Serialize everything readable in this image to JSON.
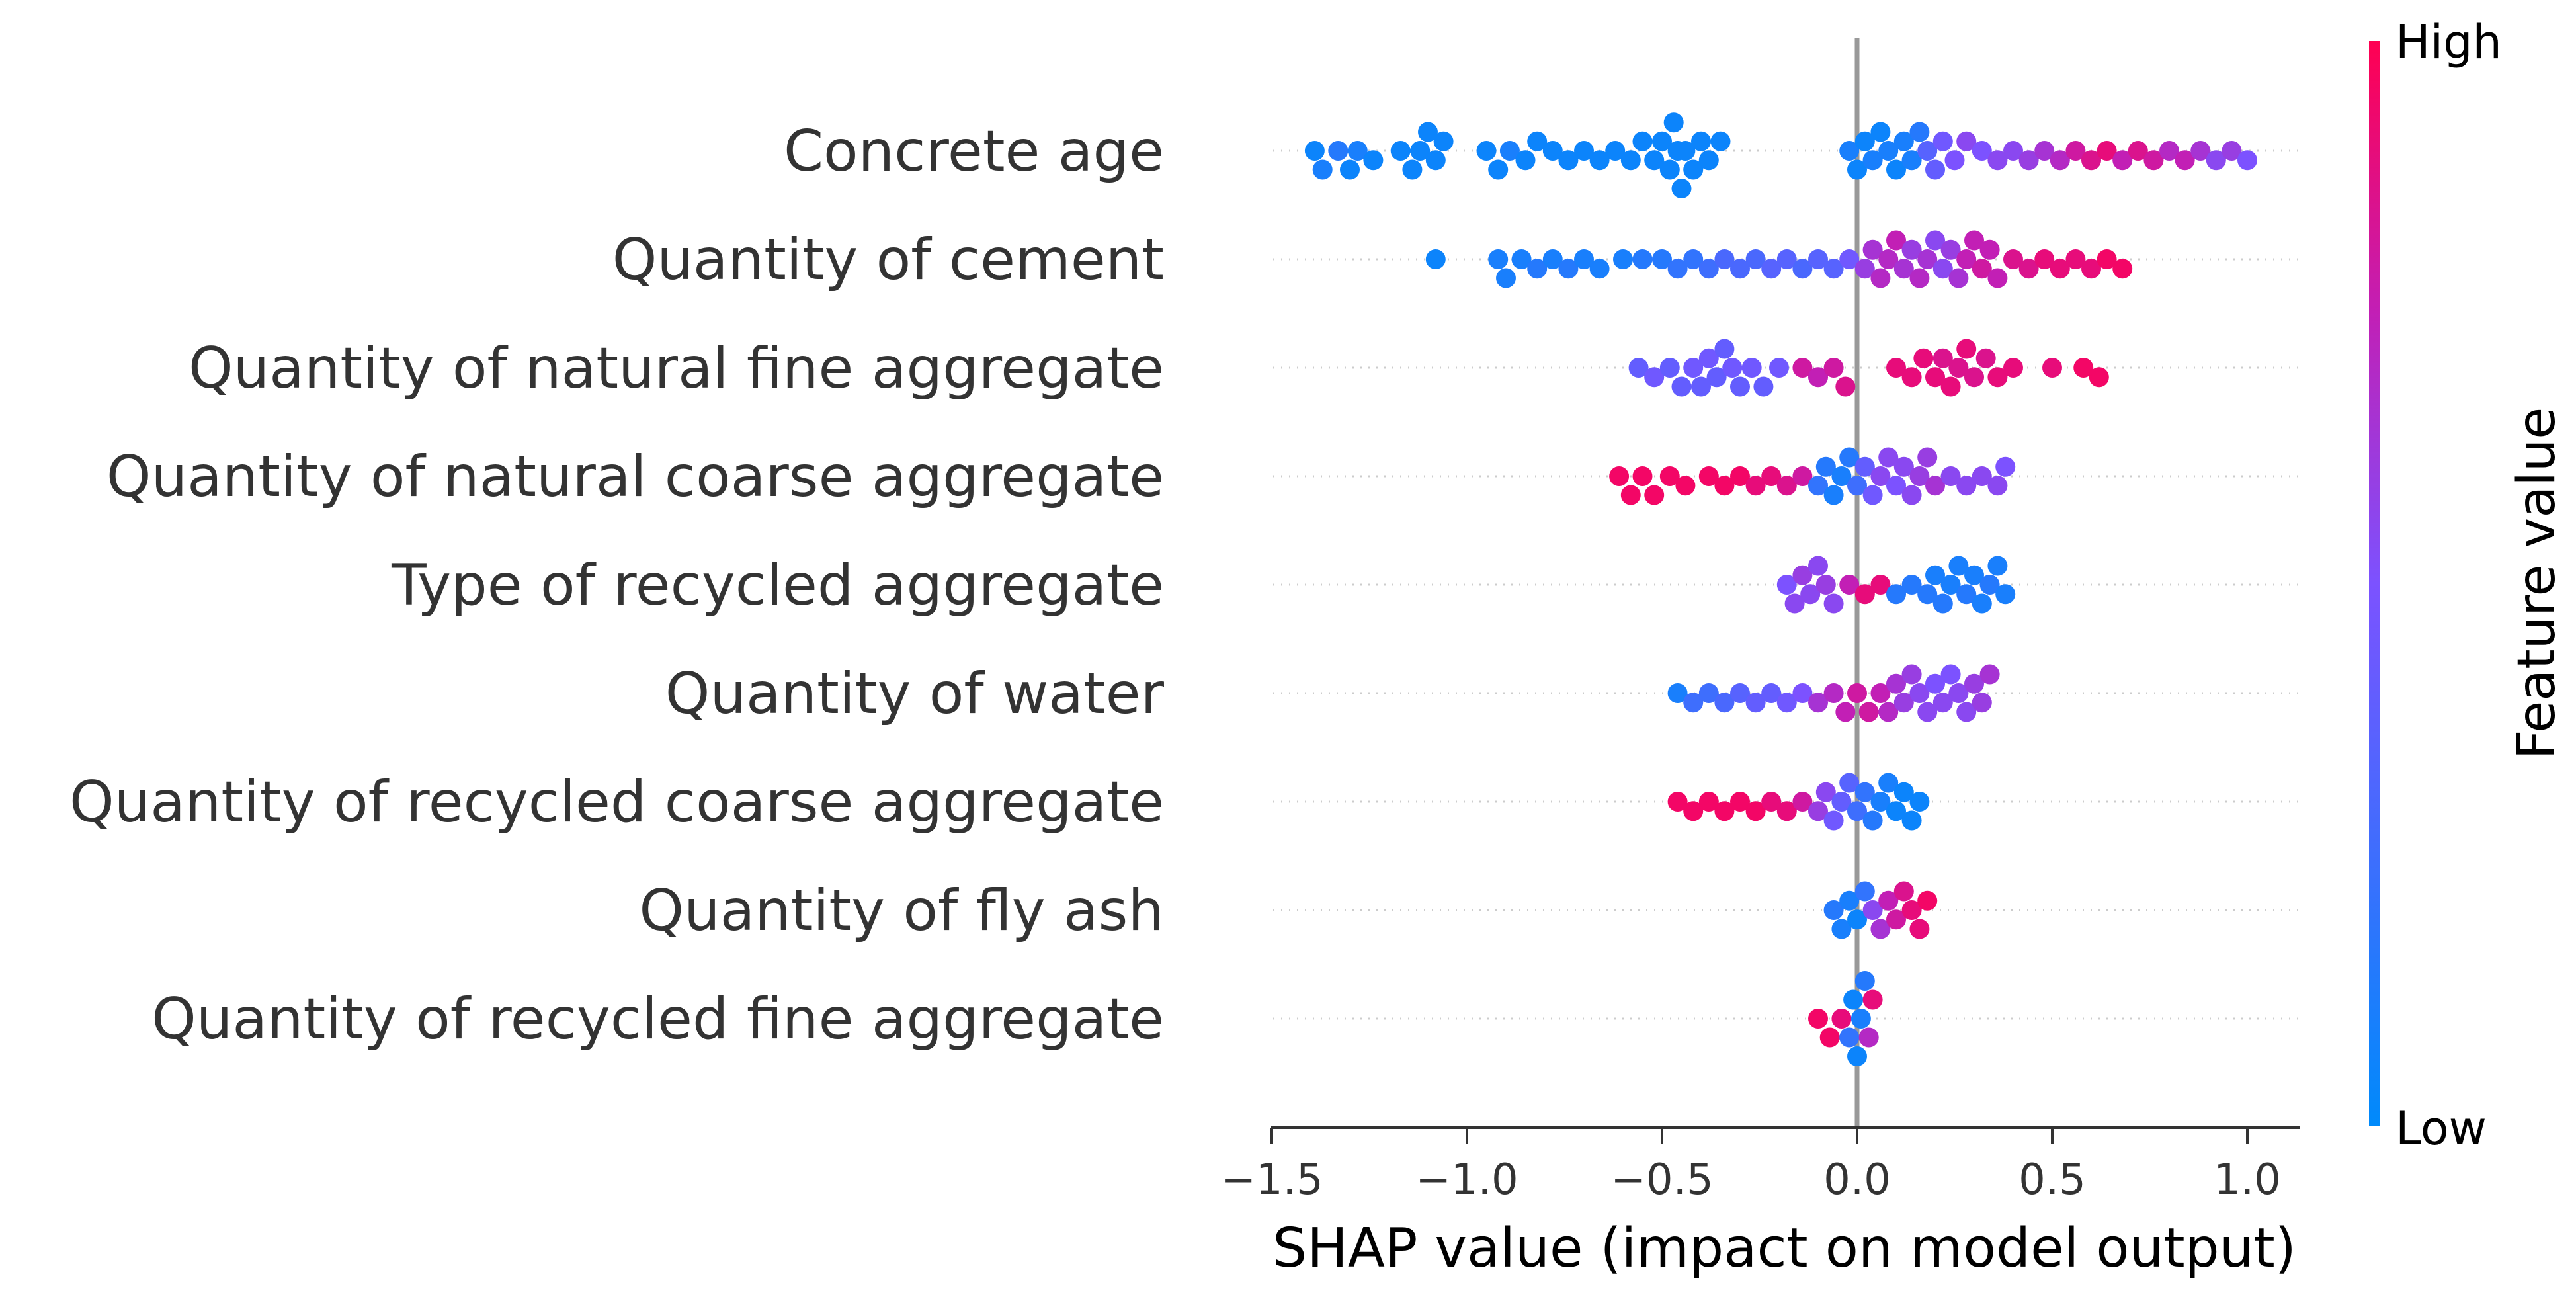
{
  "chart_data": {
    "type": "scatter",
    "subtype": "shap-beeswarm",
    "title": "",
    "xlabel": "SHAP value (impact on model output)",
    "xlim": [
      -1.5,
      1.12
    ],
    "xticks": [
      -1.5,
      -1.0,
      -0.5,
      0.0,
      0.5,
      1.0
    ],
    "xtick_labels": [
      "−1.5",
      "−1.0",
      "−0.5",
      "0.0",
      "0.5",
      "1.0"
    ],
    "colorbar": {
      "title": "Feature value",
      "high_label": "High",
      "low_label": "Low",
      "low_color": "#008afb",
      "high_color": "#ff0052"
    },
    "features": [
      {
        "name": "Concrete age",
        "points": [
          [
            -1.39,
            0.05
          ],
          [
            -1.37,
            0.1
          ],
          [
            -1.33,
            0.15
          ],
          [
            -1.3,
            0.05
          ],
          [
            -1.28,
            0.1
          ],
          [
            -1.24,
            0.05
          ],
          [
            -1.17,
            0.05
          ],
          [
            -1.14,
            0.05
          ],
          [
            -1.12,
            0.05
          ],
          [
            -1.1,
            0.05
          ],
          [
            -1.08,
            0.05
          ],
          [
            -1.06,
            0.05
          ],
          [
            -0.95,
            0.05
          ],
          [
            -0.92,
            0.05
          ],
          [
            -0.89,
            0.1
          ],
          [
            -0.85,
            0.05
          ],
          [
            -0.82,
            0.05
          ],
          [
            -0.78,
            0.05
          ],
          [
            -0.74,
            0.05
          ],
          [
            -0.7,
            0.05
          ],
          [
            -0.66,
            0.05
          ],
          [
            -0.62,
            0.05
          ],
          [
            -0.58,
            0.05
          ],
          [
            -0.55,
            0.05
          ],
          [
            -0.52,
            0.05
          ],
          [
            -0.5,
            0.05
          ],
          [
            -0.48,
            0.05
          ],
          [
            -0.47,
            0.05
          ],
          [
            -0.46,
            0.05
          ],
          [
            -0.45,
            0.05
          ],
          [
            -0.44,
            0.05
          ],
          [
            -0.42,
            0.05
          ],
          [
            -0.4,
            0.05
          ],
          [
            -0.38,
            0.05
          ],
          [
            -0.35,
            0.05
          ],
          [
            -0.02,
            0.1
          ],
          [
            0.0,
            0.05
          ],
          [
            0.02,
            0.05
          ],
          [
            0.04,
            0.1
          ],
          [
            0.06,
            0.05
          ],
          [
            0.08,
            0.1
          ],
          [
            0.1,
            0.05
          ],
          [
            0.12,
            0.1
          ],
          [
            0.14,
            0.1
          ],
          [
            0.16,
            0.15
          ],
          [
            0.18,
            0.35
          ],
          [
            0.2,
            0.4
          ],
          [
            0.22,
            0.45
          ],
          [
            0.25,
            0.5
          ],
          [
            0.28,
            0.55
          ],
          [
            0.32,
            0.5
          ],
          [
            0.36,
            0.55
          ],
          [
            0.4,
            0.55
          ],
          [
            0.44,
            0.6
          ],
          [
            0.48,
            0.65
          ],
          [
            0.52,
            0.7
          ],
          [
            0.56,
            0.8
          ],
          [
            0.6,
            0.85
          ],
          [
            0.64,
            0.9
          ],
          [
            0.68,
            0.75
          ],
          [
            0.72,
            0.85
          ],
          [
            0.76,
            0.8
          ],
          [
            0.8,
            0.7
          ],
          [
            0.84,
            0.75
          ],
          [
            0.88,
            0.65
          ],
          [
            0.92,
            0.55
          ],
          [
            0.96,
            0.6
          ],
          [
            1.0,
            0.5
          ]
        ]
      },
      {
        "name": "Quantity of cement",
        "points": [
          [
            -1.08,
            0.05
          ],
          [
            -0.92,
            0.1
          ],
          [
            -0.9,
            0.1
          ],
          [
            -0.86,
            0.1
          ],
          [
            -0.82,
            0.15
          ],
          [
            -0.78,
            0.1
          ],
          [
            -0.74,
            0.15
          ],
          [
            -0.7,
            0.1
          ],
          [
            -0.66,
            0.1
          ],
          [
            -0.6,
            0.1
          ],
          [
            -0.55,
            0.15
          ],
          [
            -0.5,
            0.15
          ],
          [
            -0.46,
            0.2
          ],
          [
            -0.42,
            0.2
          ],
          [
            -0.38,
            0.25
          ],
          [
            -0.34,
            0.3
          ],
          [
            -0.3,
            0.3
          ],
          [
            -0.26,
            0.3
          ],
          [
            -0.22,
            0.35
          ],
          [
            -0.18,
            0.35
          ],
          [
            -0.14,
            0.3
          ],
          [
            -0.1,
            0.35
          ],
          [
            -0.06,
            0.35
          ],
          [
            -0.02,
            0.45
          ],
          [
            0.02,
            0.6
          ],
          [
            0.04,
            0.65
          ],
          [
            0.06,
            0.7
          ],
          [
            0.08,
            0.7
          ],
          [
            0.1,
            0.75
          ],
          [
            0.12,
            0.65
          ],
          [
            0.14,
            0.6
          ],
          [
            0.16,
            0.7
          ],
          [
            0.18,
            0.65
          ],
          [
            0.2,
            0.55
          ],
          [
            0.22,
            0.55
          ],
          [
            0.24,
            0.6
          ],
          [
            0.26,
            0.65
          ],
          [
            0.28,
            0.75
          ],
          [
            0.3,
            0.75
          ],
          [
            0.32,
            0.8
          ],
          [
            0.34,
            0.75
          ],
          [
            0.36,
            0.75
          ],
          [
            0.4,
            0.85
          ],
          [
            0.44,
            0.85
          ],
          [
            0.48,
            0.9
          ],
          [
            0.52,
            0.9
          ],
          [
            0.56,
            0.9
          ],
          [
            0.6,
            0.9
          ],
          [
            0.64,
            0.95
          ],
          [
            0.68,
            0.95
          ]
        ]
      },
      {
        "name": "Quantity of natural fine aggregate",
        "points": [
          [
            -0.56,
            0.4
          ],
          [
            -0.52,
            0.45
          ],
          [
            -0.48,
            0.4
          ],
          [
            -0.45,
            0.4
          ],
          [
            -0.42,
            0.45
          ],
          [
            -0.4,
            0.4
          ],
          [
            -0.38,
            0.45
          ],
          [
            -0.36,
            0.4
          ],
          [
            -0.34,
            0.4
          ],
          [
            -0.32,
            0.45
          ],
          [
            -0.3,
            0.4
          ],
          [
            -0.27,
            0.45
          ],
          [
            -0.24,
            0.4
          ],
          [
            -0.2,
            0.45
          ],
          [
            -0.14,
            0.8
          ],
          [
            -0.1,
            0.75
          ],
          [
            -0.06,
            0.8
          ],
          [
            -0.03,
            0.85
          ],
          [
            0.1,
            0.9
          ],
          [
            0.14,
            0.9
          ],
          [
            0.17,
            0.9
          ],
          [
            0.2,
            0.9
          ],
          [
            0.22,
            0.85
          ],
          [
            0.24,
            0.9
          ],
          [
            0.26,
            0.85
          ],
          [
            0.28,
            0.9
          ],
          [
            0.3,
            0.85
          ],
          [
            0.33,
            0.85
          ],
          [
            0.36,
            0.9
          ],
          [
            0.4,
            0.9
          ],
          [
            0.5,
            0.9
          ],
          [
            0.58,
            0.95
          ],
          [
            0.62,
            0.95
          ]
        ]
      },
      {
        "name": "Quantity of natural coarse aggregate",
        "points": [
          [
            -0.61,
            0.95
          ],
          [
            -0.58,
            0.95
          ],
          [
            -0.55,
            0.95
          ],
          [
            -0.52,
            0.95
          ],
          [
            -0.48,
            0.95
          ],
          [
            -0.44,
            0.95
          ],
          [
            -0.38,
            0.95
          ],
          [
            -0.34,
            0.95
          ],
          [
            -0.3,
            0.95
          ],
          [
            -0.26,
            0.9
          ],
          [
            -0.22,
            0.9
          ],
          [
            -0.18,
            0.85
          ],
          [
            -0.14,
            0.8
          ],
          [
            -0.1,
            0.2
          ],
          [
            -0.08,
            0.15
          ],
          [
            -0.06,
            0.1
          ],
          [
            -0.04,
            0.1
          ],
          [
            -0.02,
            0.15
          ],
          [
            0.0,
            0.25
          ],
          [
            0.02,
            0.4
          ],
          [
            0.04,
            0.45
          ],
          [
            0.06,
            0.55
          ],
          [
            0.08,
            0.55
          ],
          [
            0.1,
            0.5
          ],
          [
            0.12,
            0.55
          ],
          [
            0.14,
            0.55
          ],
          [
            0.16,
            0.6
          ],
          [
            0.18,
            0.6
          ],
          [
            0.2,
            0.65
          ],
          [
            0.24,
            0.55
          ],
          [
            0.28,
            0.55
          ],
          [
            0.32,
            0.55
          ],
          [
            0.36,
            0.55
          ],
          [
            0.38,
            0.5
          ]
        ]
      },
      {
        "name": "Type of recycled aggregate",
        "points": [
          [
            -0.18,
            0.5
          ],
          [
            -0.16,
            0.55
          ],
          [
            -0.14,
            0.6
          ],
          [
            -0.12,
            0.55
          ],
          [
            -0.1,
            0.55
          ],
          [
            -0.08,
            0.6
          ],
          [
            -0.06,
            0.55
          ],
          [
            -0.02,
            0.75
          ],
          [
            0.02,
            0.9
          ],
          [
            0.06,
            0.9
          ],
          [
            0.1,
            0.15
          ],
          [
            0.14,
            0.15
          ],
          [
            0.18,
            0.15
          ],
          [
            0.2,
            0.1
          ],
          [
            0.22,
            0.15
          ],
          [
            0.24,
            0.1
          ],
          [
            0.26,
            0.1
          ],
          [
            0.28,
            0.15
          ],
          [
            0.3,
            0.1
          ],
          [
            0.32,
            0.1
          ],
          [
            0.34,
            0.15
          ],
          [
            0.36,
            0.1
          ],
          [
            0.38,
            0.1
          ]
        ]
      },
      {
        "name": "Quantity of water",
        "points": [
          [
            -0.46,
            0.1
          ],
          [
            -0.42,
            0.25
          ],
          [
            -0.38,
            0.25
          ],
          [
            -0.34,
            0.3
          ],
          [
            -0.3,
            0.35
          ],
          [
            -0.26,
            0.4
          ],
          [
            -0.22,
            0.4
          ],
          [
            -0.18,
            0.45
          ],
          [
            -0.14,
            0.5
          ],
          [
            -0.1,
            0.65
          ],
          [
            -0.06,
            0.7
          ],
          [
            -0.03,
            0.75
          ],
          [
            0.0,
            0.8
          ],
          [
            0.03,
            0.8
          ],
          [
            0.06,
            0.75
          ],
          [
            0.08,
            0.7
          ],
          [
            0.1,
            0.65
          ],
          [
            0.12,
            0.6
          ],
          [
            0.14,
            0.6
          ],
          [
            0.16,
            0.55
          ],
          [
            0.18,
            0.55
          ],
          [
            0.2,
            0.5
          ],
          [
            0.22,
            0.55
          ],
          [
            0.24,
            0.5
          ],
          [
            0.26,
            0.55
          ],
          [
            0.28,
            0.55
          ],
          [
            0.3,
            0.6
          ],
          [
            0.32,
            0.6
          ],
          [
            0.34,
            0.65
          ]
        ]
      },
      {
        "name": "Quantity of recycled coarse aggregate",
        "points": [
          [
            -0.46,
            0.95
          ],
          [
            -0.42,
            0.95
          ],
          [
            -0.38,
            0.95
          ],
          [
            -0.34,
            0.95
          ],
          [
            -0.3,
            0.95
          ],
          [
            -0.26,
            0.95
          ],
          [
            -0.22,
            0.9
          ],
          [
            -0.18,
            0.9
          ],
          [
            -0.14,
            0.8
          ],
          [
            -0.1,
            0.6
          ],
          [
            -0.08,
            0.55
          ],
          [
            -0.06,
            0.45
          ],
          [
            -0.04,
            0.4
          ],
          [
            -0.02,
            0.35
          ],
          [
            0.0,
            0.25
          ],
          [
            0.02,
            0.2
          ],
          [
            0.04,
            0.15
          ],
          [
            0.06,
            0.1
          ],
          [
            0.08,
            0.1
          ],
          [
            0.1,
            0.05
          ],
          [
            0.12,
            0.05
          ],
          [
            0.14,
            0.05
          ],
          [
            0.16,
            0.05
          ]
        ]
      },
      {
        "name": "Quantity of fly ash",
        "points": [
          [
            -0.06,
            0.15
          ],
          [
            -0.04,
            0.1
          ],
          [
            -0.02,
            0.1
          ],
          [
            0.0,
            0.05
          ],
          [
            0.02,
            0.2
          ],
          [
            0.04,
            0.55
          ],
          [
            0.06,
            0.65
          ],
          [
            0.08,
            0.75
          ],
          [
            0.1,
            0.8
          ],
          [
            0.12,
            0.85
          ],
          [
            0.14,
            0.9
          ],
          [
            0.16,
            0.9
          ],
          [
            0.18,
            0.95
          ]
        ]
      },
      {
        "name": "Quantity of recycled fine aggregate",
        "points": [
          [
            -0.1,
            0.95
          ],
          [
            -0.07,
            0.95
          ],
          [
            -0.04,
            0.9
          ],
          [
            -0.02,
            0.2
          ],
          [
            -0.01,
            0.05
          ],
          [
            0.0,
            0.05
          ],
          [
            0.01,
            0.1
          ],
          [
            0.02,
            0.15
          ],
          [
            0.03,
            0.7
          ],
          [
            0.04,
            0.9
          ]
        ]
      }
    ]
  }
}
